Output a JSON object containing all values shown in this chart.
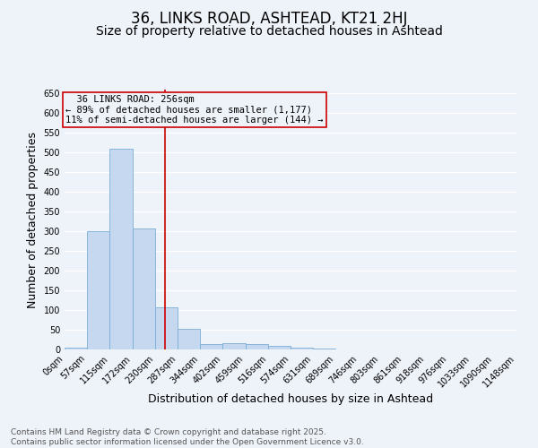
{
  "title": "36, LINKS ROAD, ASHTEAD, KT21 2HJ",
  "subtitle": "Size of property relative to detached houses in Ashtead",
  "xlabel": "Distribution of detached houses by size in Ashtead",
  "ylabel": "Number of detached properties",
  "bins": [
    0,
    57,
    115,
    172,
    230,
    287,
    344,
    402,
    459,
    516,
    574,
    631,
    689,
    746,
    803,
    861,
    918,
    976,
    1033,
    1090,
    1148
  ],
  "bin_labels": [
    "0sqm",
    "57sqm",
    "115sqm",
    "172sqm",
    "230sqm",
    "287sqm",
    "344sqm",
    "402sqm",
    "459sqm",
    "516sqm",
    "574sqm",
    "631sqm",
    "689sqm",
    "746sqm",
    "803sqm",
    "861sqm",
    "918sqm",
    "976sqm",
    "1033sqm",
    "1090sqm",
    "1148sqm"
  ],
  "bar_heights": [
    5,
    300,
    510,
    308,
    108,
    53,
    13,
    15,
    14,
    9,
    5,
    3,
    0,
    1,
    0,
    0,
    1,
    0,
    0,
    1
  ],
  "bar_color": "#c5d8f0",
  "bar_edgecolor": "#7aaed6",
  "vline_x": 256,
  "vline_color": "#cc0000",
  "ylim": [
    0,
    660
  ],
  "yticks": [
    0,
    50,
    100,
    150,
    200,
    250,
    300,
    350,
    400,
    450,
    500,
    550,
    600,
    650
  ],
  "annotation_title": "36 LINKS ROAD: 256sqm",
  "annotation_line1": "← 89% of detached houses are smaller (1,177)",
  "annotation_line2": "11% of semi-detached houses are larger (144) →",
  "annotation_box_color": "#cc0000",
  "footer_line1": "Contains HM Land Registry data © Crown copyright and database right 2025.",
  "footer_line2": "Contains public sector information licensed under the Open Government Licence v3.0.",
  "background_color": "#eef2f9",
  "grid_color": "#ffffff",
  "title_fontsize": 12,
  "subtitle_fontsize": 10,
  "axis_label_fontsize": 9,
  "tick_fontsize": 7,
  "annotation_fontsize": 7.5,
  "footer_fontsize": 6.5
}
